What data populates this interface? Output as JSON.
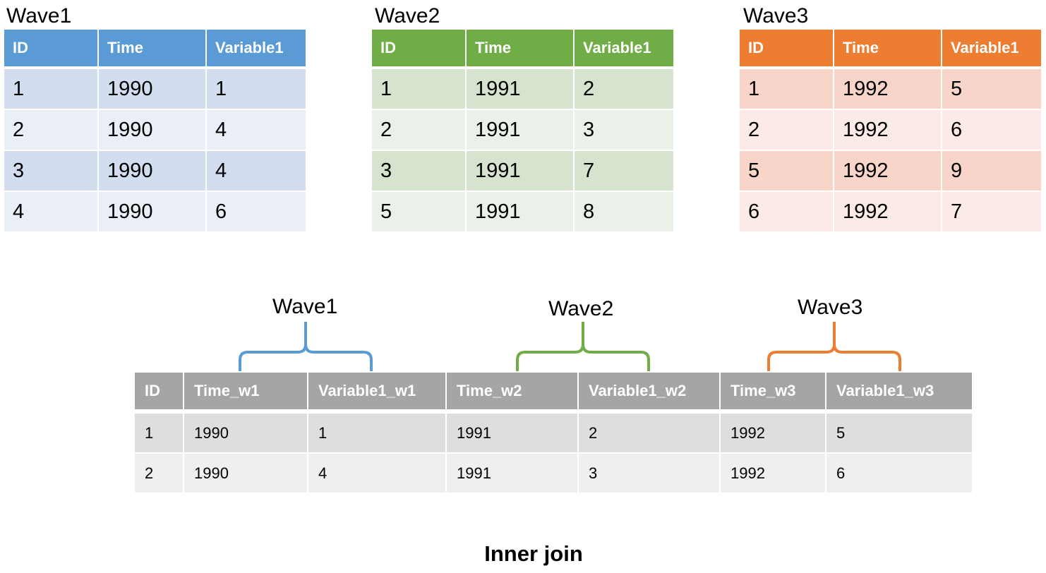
{
  "waves": [
    {
      "title": "Wave1",
      "headers": [
        "ID",
        "Time",
        "Variable1"
      ],
      "rows": [
        [
          "1",
          "1990",
          "1"
        ],
        [
          "2",
          "1990",
          "4"
        ],
        [
          "3",
          "1990",
          "4"
        ],
        [
          "4",
          "1990",
          "6"
        ]
      ]
    },
    {
      "title": "Wave2",
      "headers": [
        "ID",
        "Time",
        "Variable1"
      ],
      "rows": [
        [
          "1",
          "1991",
          "2"
        ],
        [
          "2",
          "1991",
          "3"
        ],
        [
          "3",
          "1991",
          "7"
        ],
        [
          "5",
          "1991",
          "8"
        ]
      ]
    },
    {
      "title": "Wave3",
      "headers": [
        "ID",
        "Time",
        "Variable1"
      ],
      "rows": [
        [
          "1",
          "1992",
          "5"
        ],
        [
          "2",
          "1992",
          "6"
        ],
        [
          "5",
          "1992",
          "9"
        ],
        [
          "6",
          "1992",
          "7"
        ]
      ]
    }
  ],
  "joined": {
    "brace_labels": [
      "Wave1",
      "Wave2",
      "Wave3"
    ],
    "headers": [
      "ID",
      "Time_w1",
      "Variable1_w1",
      "Time_w2",
      "Variable1_w2",
      "Time_w3",
      "Variable1_w3"
    ],
    "rows": [
      [
        "1",
        "1990",
        "1",
        "1991",
        "2",
        "1992",
        "5"
      ],
      [
        "2",
        "1990",
        "4",
        "1991",
        "3",
        "1992",
        "6"
      ]
    ]
  },
  "caption": "Inner join",
  "colors": {
    "wave1": "#5b9bd5",
    "wave2": "#70ad47",
    "wave3": "#ed7d31",
    "joined_header": "#a5a5a5"
  }
}
